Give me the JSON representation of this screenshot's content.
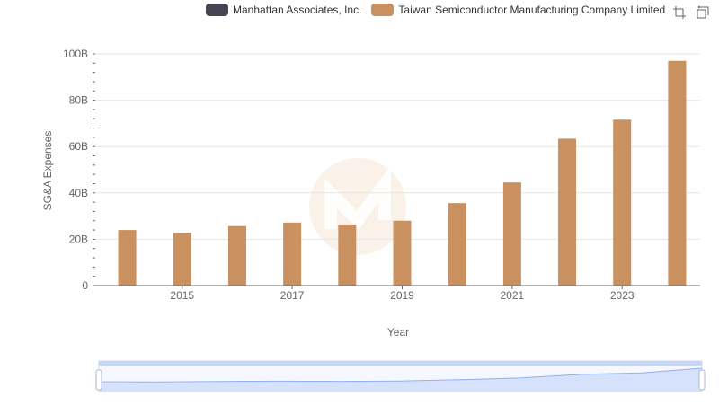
{
  "colors": {
    "manhattan": "#464553",
    "tsmc": "#c8915f",
    "grid": "#e6e6e6",
    "axis": "#666666",
    "slider_fill": "#d6e2fb",
    "slider_line": "#8fb0f7"
  },
  "icons": [
    "zoom-icon",
    "zoom-reset-icon"
  ],
  "chart_data": {
    "type": "bar",
    "title": "",
    "xlabel": "Year",
    "ylabel": "SG&A Expenses",
    "ylim": [
      0,
      100000000000
    ],
    "yticks": [
      "0",
      "20B",
      "40B",
      "60B",
      "80B",
      "100B"
    ],
    "xticks": [
      "2015",
      "2017",
      "2019",
      "2021",
      "2023"
    ],
    "grid": true,
    "legend_position": "top-right",
    "categories": [
      "2014",
      "2015",
      "2016",
      "2017",
      "2018",
      "2019",
      "2020",
      "2021",
      "2022",
      "2023",
      "2024"
    ],
    "series": [
      {
        "name": "Manhattan Associates, Inc.",
        "values": [
          0,
          0,
          0,
          0,
          0,
          0,
          0,
          0,
          0,
          0,
          0
        ]
      },
      {
        "name": "Taiwan Semiconductor Manufacturing Company Limited",
        "values": [
          24000000000,
          22800000000,
          25700000000,
          27200000000,
          26400000000,
          28000000000,
          35600000000,
          44500000000,
          63400000000,
          71600000000,
          97000000000
        ]
      }
    ]
  }
}
